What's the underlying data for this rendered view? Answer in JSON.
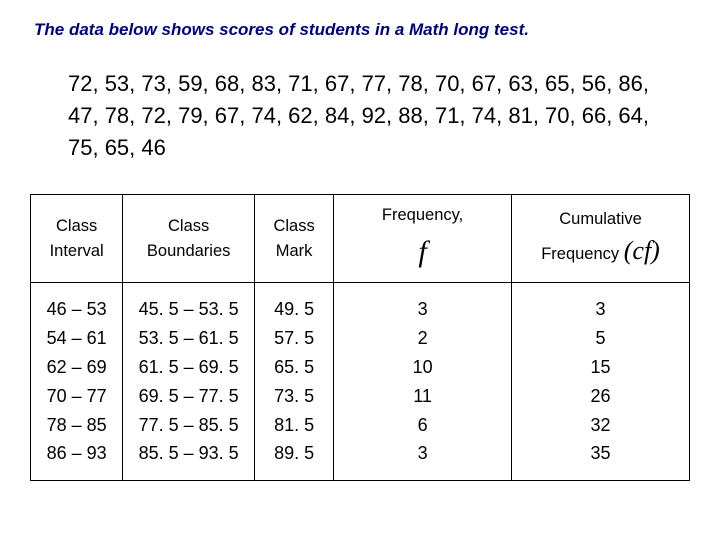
{
  "title": "The data below shows scores of students in a Math long test.",
  "raw_data": "72, 53, 73, 59, 68, 83, 71, 67, 77, 78, 70, 67, 63, 65, 56, 86, 47, 78, 72, 79, 67, 74, 62, 84, 92, 88, 71, 74, 81, 70, 66, 64, 75, 65, 46",
  "table": {
    "headers": {
      "interval_l1": "Class",
      "interval_l2": "Interval",
      "boundaries_l1": "Class",
      "boundaries_l2": "Boundaries",
      "mark_l1": "Class",
      "mark_l2": "Mark",
      "freq_l1": "Frequency,",
      "freq_symbol": "f",
      "cumfreq_l1": "Cumulative",
      "cumfreq_l2": "Frequency",
      "cumfreq_symbol": "(cf)"
    },
    "rows": [
      {
        "interval": "46 – 53",
        "boundaries": "45. 5 – 53. 5",
        "mark": "49. 5",
        "freq": "3",
        "cumfreq": "3"
      },
      {
        "interval": "54 – 61",
        "boundaries": "53. 5 – 61. 5",
        "mark": "57. 5",
        "freq": "2",
        "cumfreq": "5"
      },
      {
        "interval": "62 – 69",
        "boundaries": "61. 5 – 69. 5",
        "mark": "65. 5",
        "freq": "10",
        "cumfreq": "15"
      },
      {
        "interval": "70 – 77",
        "boundaries": "69. 5 – 77. 5",
        "mark": "73. 5",
        "freq": "11",
        "cumfreq": "26"
      },
      {
        "interval": "78 – 85",
        "boundaries": "77. 5 – 85. 5",
        "mark": "81. 5",
        "freq": "6",
        "cumfreq": "32"
      },
      {
        "interval": "86 – 93",
        "boundaries": "85. 5 – 93. 5",
        "mark": "89. 5",
        "freq": "3",
        "cumfreq": "35"
      }
    ]
  },
  "colors": {
    "title_color": "#000080",
    "text_color": "#000000",
    "border_color": "#000000",
    "background": "#ffffff"
  },
  "typography": {
    "title_fontsize": 17,
    "data_fontsize": 22,
    "header_fontsize": 16.5,
    "cell_fontsize": 18,
    "symbol_fontsize": 30
  }
}
